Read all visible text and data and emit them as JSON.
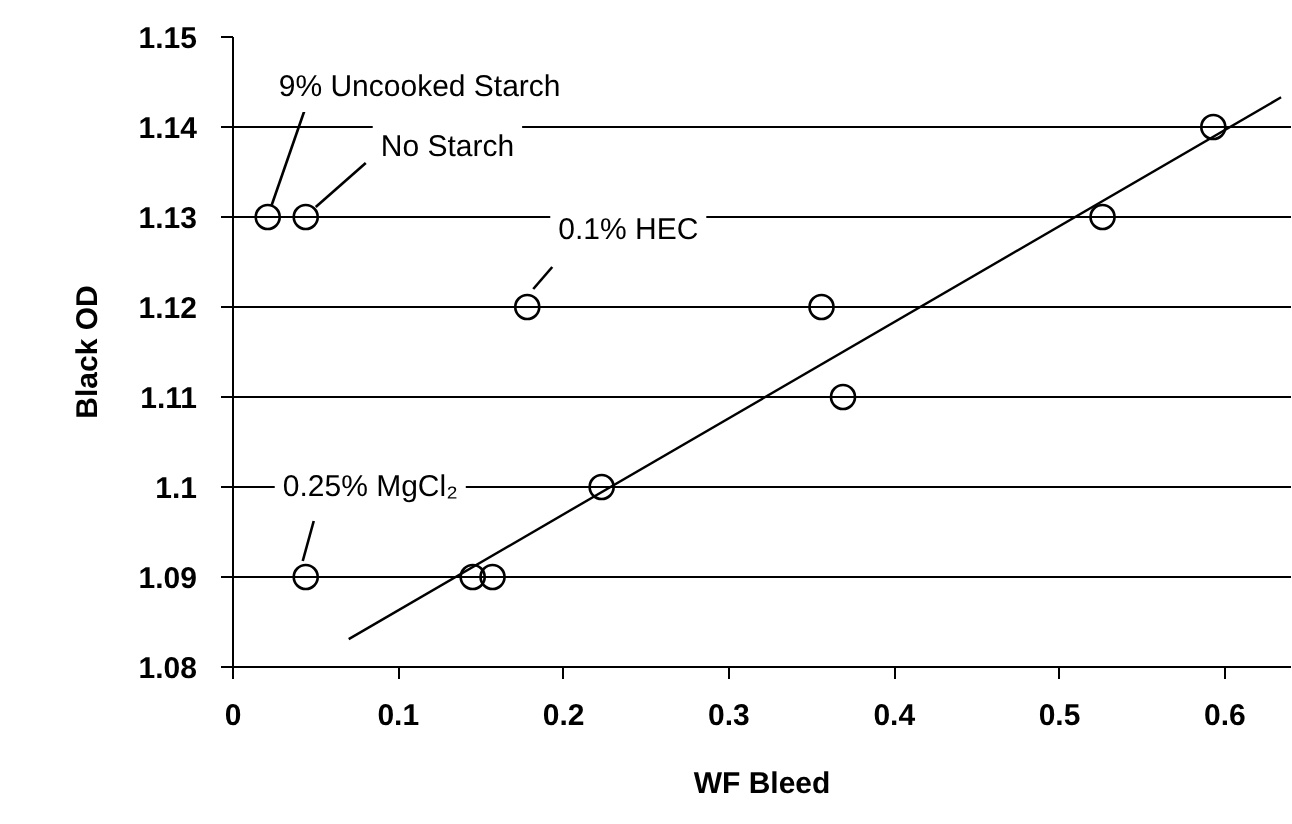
{
  "chart_data": {
    "type": "scatter",
    "xlabel": "WF Bleed",
    "ylabel": "Black OD",
    "xlim": [
      0,
      0.64
    ],
    "ylim": [
      1.08,
      1.15
    ],
    "xticks": [
      0,
      0.1,
      0.2,
      0.3,
      0.4,
      0.5,
      0.6
    ],
    "yticks": [
      1.08,
      1.09,
      1.1,
      1.11,
      1.12,
      1.13,
      1.14,
      1.15
    ],
    "grid": "y",
    "marker": "circle",
    "series": [
      {
        "color": "#000000",
        "x": [
          0.021,
          0.044,
          0.178,
          0.356,
          0.369,
          0.223,
          0.145,
          0.157,
          0.044,
          0.526,
          0.593
        ],
        "values": [
          1.13,
          1.13,
          1.12,
          1.12,
          1.11,
          1.1,
          1.09,
          1.09,
          1.09,
          1.13,
          1.14
        ]
      },
      {
        "type": "line",
        "color": "#000000",
        "x": [
          0.07,
          0.634
        ],
        "values": [
          1.0831,
          1.1433
        ],
        "marker": "none",
        "line_style": "solid"
      }
    ],
    "annotations": [
      {
        "text": "9% Uncooked Starch",
        "x": 0.021,
        "y": 1.13
      },
      {
        "text": "No Starch",
        "x": 0.044,
        "y": 1.13
      },
      {
        "text": "0.1% HEC",
        "x": 0.178,
        "y": 1.12
      },
      {
        "text": "0.25% MgCl₂",
        "x": 0.044,
        "y": 1.09
      }
    ]
  }
}
